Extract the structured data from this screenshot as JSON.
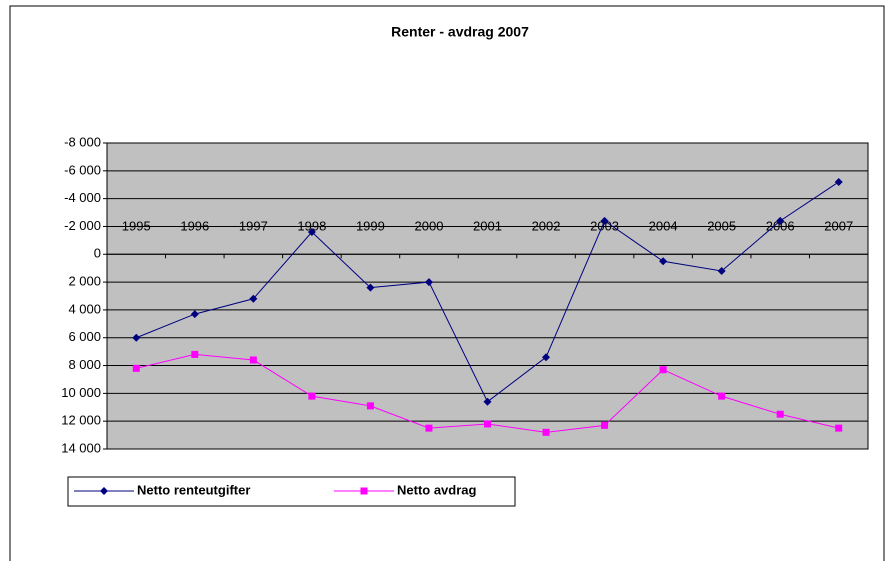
{
  "chart_data": {
    "type": "line",
    "title": "Renter - avdrag 2007",
    "categories": [
      "1995",
      "1996",
      "1997",
      "1998",
      "1999",
      "2000",
      "2001",
      "2002",
      "2003",
      "2004",
      "2005",
      "2006",
      "2007"
    ],
    "series": [
      {
        "name": "Netto renteutgifter",
        "color": "#000080",
        "marker": "diamond",
        "values": [
          6000,
          4300,
          3200,
          -1600,
          2400,
          2000,
          10600,
          7400,
          -2400,
          500,
          1200,
          -2400,
          -5200
        ]
      },
      {
        "name": "Netto avdrag",
        "color": "#ff00ff",
        "marker": "square",
        "values": [
          8200,
          7200,
          7600,
          10200,
          10900,
          12500,
          12200,
          12800,
          12300,
          8300,
          10200,
          11500,
          12500
        ]
      }
    ],
    "ylim": [
      -8000,
      14000
    ],
    "y_reversed": true,
    "yticks": [
      {
        "value": -8000,
        "label": "-8 000"
      },
      {
        "value": -6000,
        "label": "-6 000"
      },
      {
        "value": -4000,
        "label": "-4 000"
      },
      {
        "value": -2000,
        "label": "-2 000"
      },
      0,
      {
        "value": 2000,
        "label": "2 000"
      },
      {
        "value": 4000,
        "label": "4 000"
      },
      {
        "value": 6000,
        "label": "6 000"
      },
      {
        "value": 8000,
        "label": "8 000"
      },
      {
        "value": 10000,
        "label": "10 000"
      },
      {
        "value": 12000,
        "label": "12 000"
      },
      {
        "value": 14000,
        "label": "14 000"
      }
    ],
    "grid": true,
    "plot_background": "#c0c0c0",
    "legend": "bottom-left"
  }
}
